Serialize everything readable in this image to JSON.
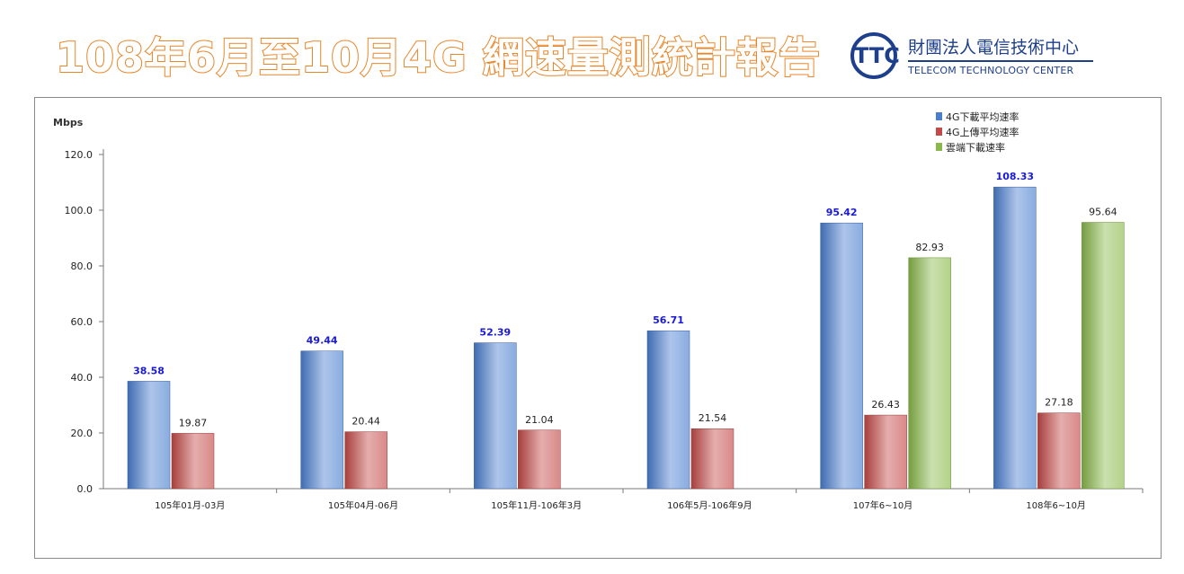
{
  "header": {
    "title": "108年6月至10月4G 網速量測統計報告",
    "logo": {
      "mark": "TTC",
      "name_cn": "財團法人電信技術中心",
      "name_en": "TELECOM TECHNOLOGY CENTER"
    }
  },
  "chart_data": {
    "type": "bar",
    "title": "",
    "xlabel": "",
    "ylabel": "Mbps",
    "ylim": [
      0,
      120
    ],
    "yticks": [
      "0.0",
      "20.0",
      "40.0",
      "60.0",
      "80.0",
      "100.0",
      "120.0"
    ],
    "grid": false,
    "legend_position": "top-right",
    "categories": [
      "105年01月-03月",
      "105年04月-06月",
      "105年11月-106年3月",
      "106年5月-106年9月",
      "107年6~10月",
      "108年6~10月"
    ],
    "series": [
      {
        "name": "4G下載平均速率",
        "color": "#4a7fd0",
        "label_color": "#1a1ad8",
        "values": [
          38.58,
          49.44,
          52.39,
          56.71,
          95.42,
          108.33
        ],
        "labels": [
          "38.58",
          "49.44",
          "52.39",
          "56.71",
          "95.42",
          "108.33"
        ]
      },
      {
        "name": "4G上傳平均速率",
        "color": "#c44a48",
        "label_color": "#222222",
        "values": [
          19.87,
          20.44,
          21.04,
          21.54,
          26.43,
          27.18
        ],
        "labels": [
          "19.87",
          "20.44",
          "21.04",
          "21.54",
          "26.43",
          "27.18"
        ]
      },
      {
        "name": "雲端下載速率",
        "color": "#8ab94a",
        "label_color": "#222222",
        "values": [
          null,
          null,
          null,
          null,
          82.93,
          95.64
        ],
        "labels": [
          "",
          "",
          "",
          "",
          "82.93",
          "95.64"
        ]
      }
    ]
  }
}
